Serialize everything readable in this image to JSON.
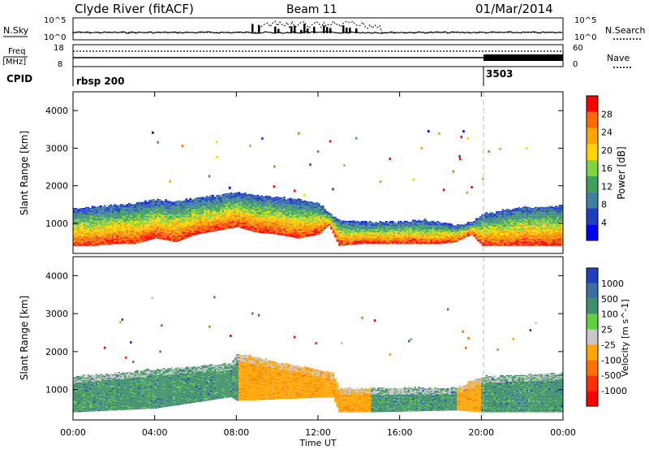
{
  "header": {
    "station": "Clyde River (fitACF)",
    "beam": "Beam 11",
    "date": "01/Mar/2014"
  },
  "top_panels": {
    "nsky_label": "N.Sky",
    "nsky_ticks": [
      "10^5",
      "10^0"
    ],
    "nsearch_label": "N.Search",
    "nsearch_ticks": [
      "10^5",
      "10^0"
    ],
    "freq_label_top": "Freq",
    "freq_label_unit": "[MHz]",
    "freq_ticks": [
      "18",
      "8"
    ],
    "nave_label": "Nave",
    "nave_ticks": [
      "60",
      "0"
    ],
    "cpid_label": "CPID",
    "cpid_entries": [
      {
        "text": "rbsp 200",
        "time_h": 0
      },
      {
        "text": "3503",
        "time_h": 20.0
      }
    ]
  },
  "chart_data": [
    {
      "type": "heatmap",
      "name": "power",
      "ylabel": "Slant Range [km]",
      "ylim": [
        200,
        4500
      ],
      "yticks": [
        1000,
        2000,
        3000,
        4000
      ],
      "xlim": [
        0,
        24
      ],
      "colorbar": {
        "label": "Power [dB]",
        "range": [
          0,
          32
        ],
        "ticks": [
          "4",
          "8",
          "12",
          "16",
          "20",
          "24",
          "28"
        ],
        "colors": [
          "#0000ff",
          "#1f3fbf",
          "#3f7fa0",
          "#3ea05a",
          "#7fd33f",
          "#ffd700",
          "#ffa500",
          "#ff6a00",
          "#ff0000"
        ]
      },
      "echo_band_km": [
        {
          "t": 0,
          "lo": 400,
          "hi": 1350
        },
        {
          "t": 1,
          "lo": 400,
          "hi": 1400
        },
        {
          "t": 2,
          "lo": 450,
          "hi": 1450
        },
        {
          "t": 3,
          "lo": 450,
          "hi": 1500
        },
        {
          "t": 4,
          "lo": 600,
          "hi": 1600
        },
        {
          "t": 5,
          "lo": 500,
          "hi": 1550
        },
        {
          "t": 6,
          "lo": 700,
          "hi": 1650
        },
        {
          "t": 7,
          "lo": 800,
          "hi": 1700
        },
        {
          "t": 8,
          "lo": 900,
          "hi": 1800
        },
        {
          "t": 9,
          "lo": 750,
          "hi": 1700
        },
        {
          "t": 10,
          "lo": 700,
          "hi": 1650
        },
        {
          "t": 11,
          "lo": 600,
          "hi": 1600
        },
        {
          "t": 12,
          "lo": 700,
          "hi": 1500
        },
        {
          "t": 12.5,
          "lo": 950,
          "hi": 1250
        },
        {
          "t": 13,
          "lo": 400,
          "hi": 1050
        },
        {
          "t": 14,
          "lo": 450,
          "hi": 1000
        },
        {
          "t": 15,
          "lo": 450,
          "hi": 1000
        },
        {
          "t": 16,
          "lo": 450,
          "hi": 1000
        },
        {
          "t": 17,
          "lo": 450,
          "hi": 1050
        },
        {
          "t": 18,
          "lo": 450,
          "hi": 1000
        },
        {
          "t": 18.7,
          "lo": 500,
          "hi": 900
        },
        {
          "t": 19.5,
          "lo": 700,
          "hi": 1000
        },
        {
          "t": 20,
          "lo": 400,
          "hi": 1200
        },
        {
          "t": 21,
          "lo": 400,
          "hi": 1300
        },
        {
          "t": 22,
          "lo": 400,
          "hi": 1400
        },
        {
          "t": 23,
          "lo": 400,
          "hi": 1400
        },
        {
          "t": 24,
          "lo": 400,
          "hi": 1450
        }
      ]
    },
    {
      "type": "heatmap",
      "name": "velocity",
      "ylabel": "Slant Range [km]",
      "ylim": [
        200,
        4500
      ],
      "yticks": [
        1000,
        2000,
        3000,
        4000
      ],
      "xlim": [
        0,
        24
      ],
      "xticks": [
        "00:00",
        "04:00",
        "08:00",
        "12:00",
        "16:00",
        "20:00",
        "00:00"
      ],
      "xlabel": "Time UT",
      "colorbar": {
        "label": "Velocity [m s^-1]",
        "ticks": [
          "1000",
          "500",
          "100",
          "25",
          "-25",
          "-100",
          "-500",
          "-1000"
        ],
        "colors": [
          "#1f3fbf",
          "#3a6fa0",
          "#3e8f6a",
          "#5fd040",
          "#c8c8c8",
          "#ffa500",
          "#ff7000",
          "#ff3000",
          "#ff0000"
        ]
      },
      "echo_band_km": [
        {
          "t": 0,
          "lo": 400,
          "hi": 1300,
          "color": "#3e8f6a"
        },
        {
          "t": 4,
          "lo": 500,
          "hi": 1500,
          "color": "#3e8f6a"
        },
        {
          "t": 7.7,
          "lo": 800,
          "hi": 1650,
          "color": "#3e8f6a"
        },
        {
          "t": 8,
          "lo": 700,
          "hi": 1900,
          "color": "#ffa500"
        },
        {
          "t": 12.7,
          "lo": 800,
          "hi": 1400,
          "color": "#ffa500"
        },
        {
          "t": 13,
          "lo": 400,
          "hi": 1000,
          "color": "#ffa500"
        },
        {
          "t": 14.5,
          "lo": 400,
          "hi": 1000,
          "color": "#3e8f6a"
        },
        {
          "t": 18.7,
          "lo": 450,
          "hi": 1000,
          "color": "#ffa500"
        },
        {
          "t": 20,
          "lo": 400,
          "hi": 1300,
          "color": "#3e8f6a"
        },
        {
          "t": 24,
          "lo": 400,
          "hi": 1400,
          "color": "#3e8f6a"
        }
      ]
    }
  ]
}
